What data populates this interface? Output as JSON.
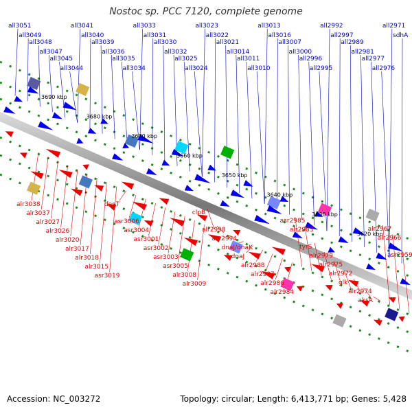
{
  "title": "Nostoc sp. PCC 7120, complete genome",
  "footer": {
    "accession": "Accession: NC_003272",
    "summary": "Topology: circular; Length: 6,413,771 bp; Genes: 5,428"
  },
  "colors": {
    "forward_label": "#0000cc",
    "reverse_label": "#dd0000",
    "forward_gene": "#0000ee",
    "reverse_gene": "#ee0000",
    "backbone": "#888888",
    "tick": "#228822"
  },
  "scale_labels": [
    "3690 kbp",
    "3680 kbp",
    "3670 kbp",
    "3660 kbp",
    "3650 kbp",
    "3640 kbp",
    "3630 kbp",
    "3620 kbp"
  ],
  "forward_genes": [
    "all3051",
    "all3049",
    "all3048",
    "all3047",
    "all3045",
    "all3044",
    "all3041",
    "all3040",
    "all3039",
    "all3036",
    "all3035",
    "all3034",
    "all3033",
    "all3031",
    "all3030",
    "all3032",
    "all3025",
    "all3024",
    "all3023",
    "all3022",
    "all3021",
    "all3014",
    "all3011",
    "all3010",
    "all3013",
    "all3016",
    "all3007",
    "all3000",
    "all2996",
    "all2995",
    "all2992",
    "all2997",
    "all2989",
    "all2981",
    "all2977",
    "all2976",
    "all2971",
    "sdhA"
  ],
  "reverse_genes": [
    "alr3038",
    "alr3037",
    "alr3027",
    "alr3026",
    "alr3020",
    "alr3017",
    "alr3018",
    "alr3015",
    "asr3019",
    "degT",
    "asr3006",
    "asr3004",
    "asr3001",
    "asr3002",
    "asr3003",
    "asr3005",
    "alr3008",
    "alr3009",
    "clpB",
    "alr2998",
    "asr2994",
    "dnaJ/dnaK",
    "dnaJ",
    "alr2988",
    "alr2987",
    "alr2986",
    "alr2984",
    "asr2985",
    "alr2983",
    "tyrS",
    "alr2979",
    "alr2975",
    "alr2972",
    "glk",
    "alr2974",
    "aksA",
    "alr2967",
    "alr2966",
    "asr2959"
  ]
}
